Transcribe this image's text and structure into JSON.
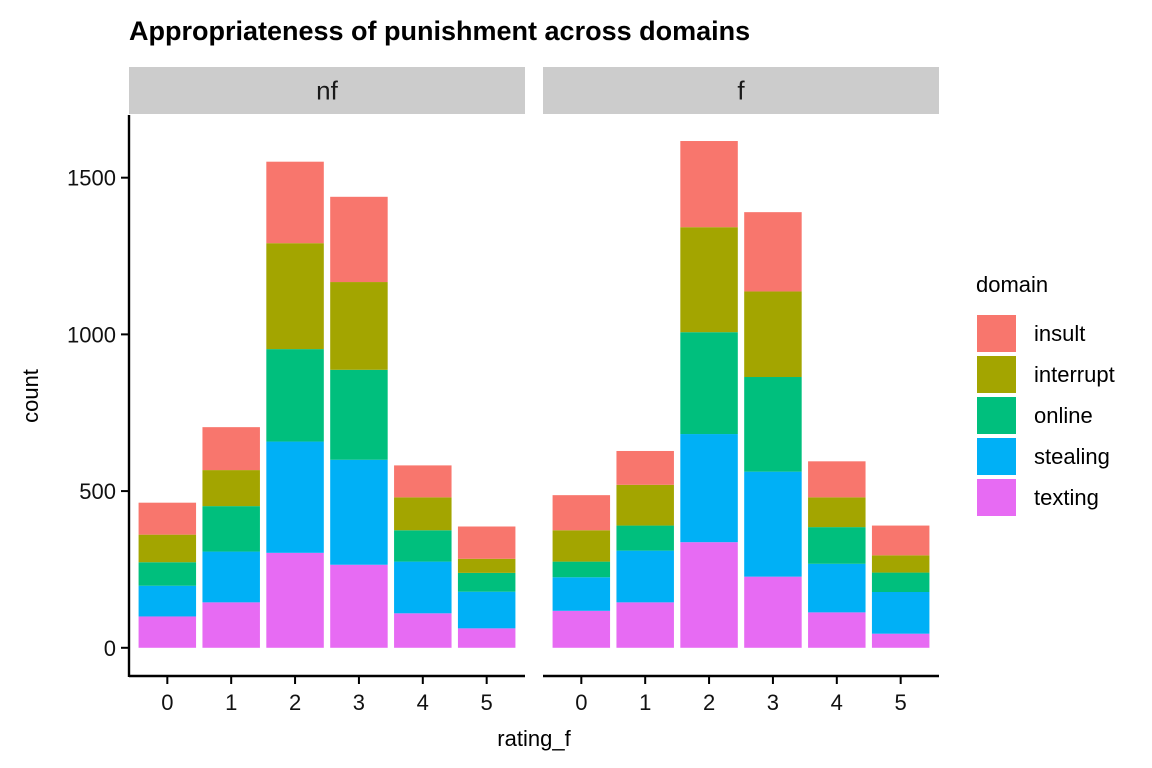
{
  "chart_data": {
    "type": "bar",
    "stacked": true,
    "title": "Appropriateness of punishment across domains",
    "xlabel": "rating_f",
    "ylabel": "count",
    "categories": [
      "0",
      "1",
      "2",
      "3",
      "4",
      "5"
    ],
    "yticks": [
      0,
      500,
      1000,
      1500
    ],
    "ylim": [
      -90,
      1700
    ],
    "grid": false,
    "legend": {
      "title": "domain",
      "position": "right",
      "entries": [
        "insult",
        "interrupt",
        "online",
        "stealing",
        "texting"
      ]
    },
    "colors": {
      "insult": "#F8766D",
      "interrupt": "#A3A500",
      "online": "#00BF7D",
      "stealing": "#00B0F6",
      "texting": "#E76BF3"
    },
    "facets": [
      {
        "label": "nf",
        "series": [
          {
            "name": "texting",
            "values": [
              100,
              145,
              303,
              265,
              110,
              62
            ]
          },
          {
            "name": "stealing",
            "values": [
              98,
              162,
              355,
              335,
              165,
              117
            ]
          },
          {
            "name": "online",
            "values": [
              75,
              145,
              295,
              287,
              100,
              60
            ]
          },
          {
            "name": "interrupt",
            "values": [
              88,
              115,
              338,
              280,
              105,
              45
            ]
          },
          {
            "name": "insult",
            "values": [
              102,
              137,
              260,
              272,
              102,
              103
            ]
          }
        ]
      },
      {
        "label": "f",
        "series": [
          {
            "name": "texting",
            "values": [
              118,
              145,
              337,
              227,
              113,
              45
            ]
          },
          {
            "name": "stealing",
            "values": [
              107,
              165,
              345,
              335,
              155,
              133
            ]
          },
          {
            "name": "online",
            "values": [
              50,
              80,
              325,
              302,
              117,
              62
            ]
          },
          {
            "name": "interrupt",
            "values": [
              100,
              130,
              335,
              273,
              95,
              55
            ]
          },
          {
            "name": "insult",
            "values": [
              112,
              108,
              275,
              253,
              115,
              95
            ]
          }
        ]
      }
    ]
  }
}
